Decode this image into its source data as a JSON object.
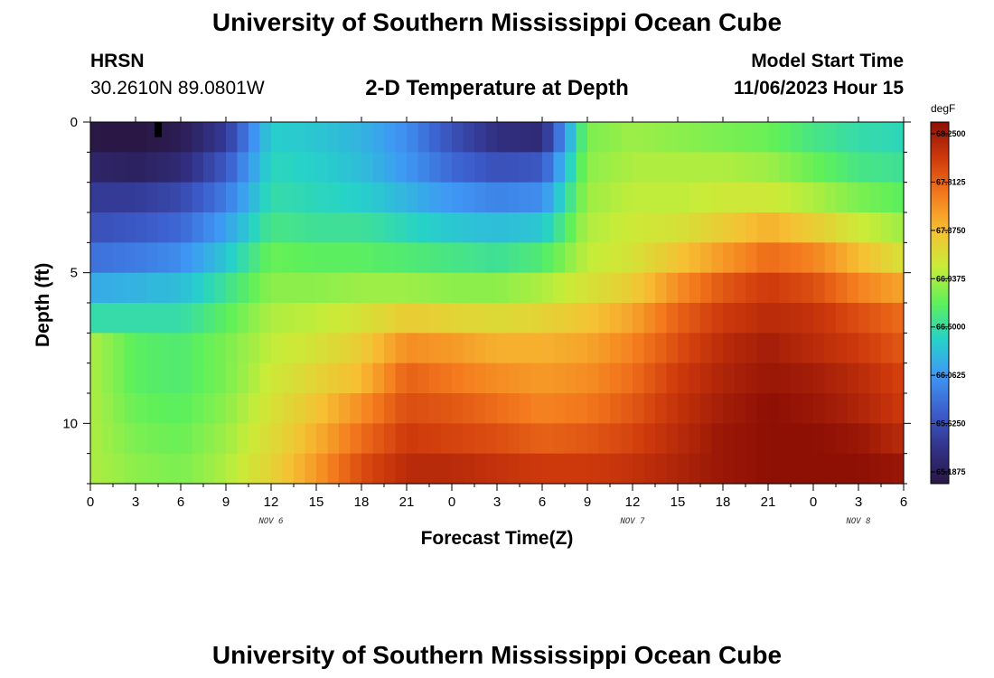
{
  "page": {
    "title": "University of Southern Mississippi Ocean Cube",
    "station": "HRSN",
    "coords": "30.2610N  89.0801W",
    "subtitle": "2-D Temperature at Depth",
    "model_label": "Model Start Time",
    "model_time": "11/06/2023 Hour 15",
    "footer_title": "University of Southern Mississippi Ocean Cube"
  },
  "colors": {
    "scale": [
      "#2a1745",
      "#32338a",
      "#3d5fce",
      "#3f98f5",
      "#26d2c8",
      "#5ef05a",
      "#c9ec38",
      "#f6c033",
      "#f47a1d",
      "#cf3a0c",
      "#8e1005"
    ],
    "missing": "#000000"
  },
  "chart_data": {
    "type": "heatmap",
    "title": "2-D Temperature at Depth",
    "xlabel": "Forecast Time(Z)",
    "ylabel": "Depth (ft)",
    "x_hours": [
      0,
      3,
      6,
      9,
      12,
      15,
      18,
      21,
      24,
      27,
      30,
      33,
      36,
      39,
      42,
      45,
      48,
      51,
      54
    ],
    "x_tick_labels": [
      "0",
      "3",
      "6",
      "9",
      "12",
      "15",
      "18",
      "21",
      "0",
      "3",
      "6",
      "9",
      "12",
      "15",
      "18",
      "21",
      "0",
      "3",
      "6"
    ],
    "date_labels": [
      {
        "hour": 12,
        "label": "NOV 6"
      },
      {
        "hour": 36,
        "label": "NOV 7"
      },
      {
        "hour": 51,
        "label": "NOV 8"
      }
    ],
    "y_ticks": [
      0,
      5,
      10
    ],
    "depths_ft": [
      0.5,
      1.5,
      2.5,
      3.5,
      4.5,
      5.5,
      6.5,
      7.5,
      8.5,
      9.5,
      10.5,
      11.5
    ],
    "xlim": [
      0,
      54
    ],
    "ylim": [
      0,
      12
    ],
    "colorbar": {
      "unit": "degF",
      "min": 65.1875,
      "max": 68.25,
      "ticks": [
        "68.2500",
        "67.8125",
        "67.3750",
        "66.9375",
        "66.5000",
        "66.0625",
        "65.6250",
        "65.1875"
      ]
    },
    "missing_cell": {
      "hour": 4.5,
      "depth_ft": 0.25
    },
    "values_degF": [
      [
        65.2,
        65.18,
        65.25,
        65.55,
        66.4,
        66.35,
        66.25,
        66.05,
        65.7,
        65.45,
        65.4,
        66.8,
        66.9,
        66.85,
        66.8,
        66.75,
        66.6,
        66.5,
        66.45
      ],
      [
        65.35,
        65.3,
        65.4,
        65.75,
        66.45,
        66.4,
        66.3,
        66.1,
        65.85,
        65.7,
        65.75,
        66.85,
        66.95,
        66.95,
        66.95,
        66.9,
        66.75,
        66.6,
        66.55
      ],
      [
        65.55,
        65.55,
        65.65,
        65.95,
        66.5,
        66.45,
        66.4,
        66.25,
        66.1,
        66.0,
        66.05,
        66.9,
        67.0,
        67.0,
        67.05,
        67.05,
        66.95,
        66.8,
        66.7
      ],
      [
        65.7,
        65.75,
        65.85,
        66.15,
        66.6,
        66.55,
        66.55,
        66.45,
        66.35,
        66.3,
        66.35,
        66.95,
        67.05,
        67.1,
        67.25,
        67.4,
        67.25,
        67.05,
        66.9
      ],
      [
        65.9,
        65.95,
        66.05,
        66.35,
        66.75,
        66.7,
        66.7,
        66.65,
        66.6,
        66.55,
        66.65,
        67.0,
        67.1,
        67.3,
        67.5,
        67.7,
        67.6,
        67.35,
        67.1
      ],
      [
        66.2,
        66.25,
        66.3,
        66.55,
        66.85,
        66.85,
        66.9,
        66.9,
        66.85,
        66.85,
        66.95,
        67.1,
        67.25,
        67.55,
        67.8,
        67.95,
        67.85,
        67.6,
        67.45
      ],
      [
        66.5,
        66.5,
        66.5,
        66.7,
        66.95,
        67.0,
        67.1,
        67.25,
        67.2,
        67.15,
        67.2,
        67.3,
        67.45,
        67.75,
        67.95,
        68.05,
        68.0,
        67.85,
        67.7
      ],
      [
        66.95,
        66.7,
        66.65,
        66.8,
        67.0,
        67.1,
        67.25,
        67.55,
        67.5,
        67.4,
        67.4,
        67.45,
        67.6,
        67.85,
        68.05,
        68.15,
        68.05,
        67.95,
        67.8
      ],
      [
        66.95,
        66.7,
        66.65,
        66.8,
        67.05,
        67.2,
        67.35,
        67.75,
        67.65,
        67.55,
        67.5,
        67.55,
        67.7,
        67.95,
        68.1,
        68.2,
        68.15,
        68.05,
        67.9
      ],
      [
        66.95,
        66.75,
        66.7,
        66.85,
        67.1,
        67.3,
        67.55,
        67.85,
        67.8,
        67.7,
        67.6,
        67.65,
        67.8,
        68.0,
        68.15,
        68.25,
        68.2,
        68.1,
        67.95
      ],
      [
        66.95,
        66.8,
        66.75,
        66.9,
        67.15,
        67.4,
        67.7,
        67.95,
        67.9,
        67.85,
        67.75,
        67.8,
        67.9,
        68.05,
        68.2,
        68.25,
        68.25,
        68.2,
        68.05
      ],
      [
        66.95,
        66.85,
        66.8,
        66.95,
        67.2,
        67.5,
        67.85,
        68.05,
        68.05,
        68.0,
        67.95,
        67.95,
        68.0,
        68.1,
        68.2,
        68.25,
        68.25,
        68.25,
        68.2
      ]
    ]
  }
}
